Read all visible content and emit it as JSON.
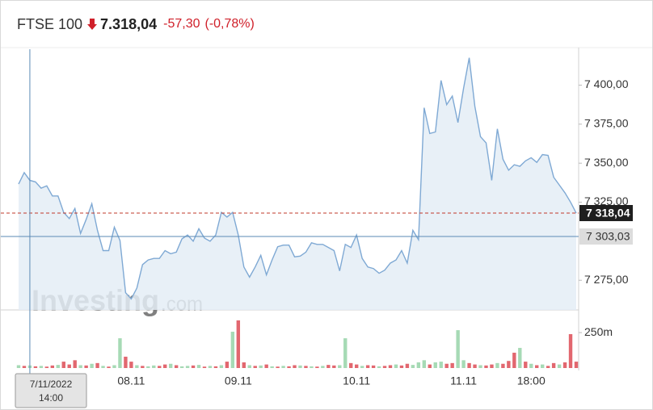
{
  "chart_data": {
    "type": "line",
    "title": "FTSE 100",
    "price_text": "7.318,04",
    "change_text": "-57,30",
    "change_pct_text": "(-0,78%)",
    "categories": [
      null,
      null,
      null,
      null,
      null,
      null,
      null,
      null,
      null,
      null,
      null,
      null,
      null,
      null,
      null,
      null,
      null,
      null,
      null,
      null,
      "08.11",
      null,
      null,
      null,
      null,
      null,
      null,
      null,
      null,
      null,
      null,
      null,
      null,
      null,
      null,
      null,
      null,
      null,
      null,
      "09.11",
      null,
      null,
      null,
      null,
      null,
      null,
      null,
      null,
      null,
      null,
      null,
      null,
      null,
      null,
      null,
      null,
      null,
      null,
      null,
      null,
      "10.11",
      null,
      null,
      null,
      null,
      null,
      null,
      null,
      null,
      null,
      null,
      null,
      null,
      null,
      null,
      null,
      null,
      null,
      null,
      "11.11",
      null,
      null,
      null,
      null,
      null,
      null,
      null,
      null,
      null,
      null,
      null,
      "18:00",
      null,
      null,
      null,
      null,
      null,
      null,
      null,
      null
    ],
    "values": [
      7336.6,
      7344,
      7339,
      7338,
      7334,
      7335.5,
      7329,
      7329,
      7318.5,
      7314.5,
      7321,
      7305,
      7314,
      7324,
      7307,
      7294,
      7294,
      7309,
      7300.5,
      7267,
      7263,
      7270,
      7285,
      7288,
      7289,
      7289,
      7294,
      7292,
      7293,
      7301.5,
      7304,
      7300,
      7308,
      7302,
      7300,
      7304,
      7318.5,
      7315.5,
      7318.5,
      7304,
      7283.5,
      7277,
      7283.5,
      7291,
      7278.5,
      7288,
      7296.5,
      7297.5,
      7297.5,
      7290,
      7290.5,
      7293,
      7299,
      7298,
      7298,
      7296,
      7294,
      7281,
      7298,
      7296,
      7304,
      7289,
      7283.5,
      7282.5,
      7279.5,
      7281.5,
      7286,
      7288,
      7294,
      7286,
      7307,
      7301,
      7385.5,
      7369,
      7370,
      7403,
      7387.5,
      7393,
      7376,
      7398,
      7417.5,
      7386.5,
      7367,
      7363,
      7339,
      7372,
      7352.5,
      7345.5,
      7349,
      7348,
      7351.5,
      7353.5,
      7350.5,
      7355.5,
      7355,
      7341,
      7336,
      7331,
      7325,
      7318.04
    ],
    "color": "#7fa9d4",
    "area_color": "#e4edf6",
    "ylim": [
      7256,
      7423
    ],
    "yticks": [
      {
        "value": 7275,
        "label": "7 275,00"
      },
      {
        "value": 7325,
        "label": "7 325,00"
      },
      {
        "value": 7350,
        "label": "7 350,00"
      },
      {
        "value": 7375,
        "label": "7 375,00"
      },
      {
        "value": 7400,
        "label": "7 400,00"
      }
    ],
    "last_price": {
      "value": 7318.04,
      "label": "7 318,04",
      "color": "#c0392b"
    },
    "crosshair": {
      "value": 7303.03,
      "label": "7 303,03",
      "index": 2,
      "date": "7/11/2022",
      "time": "14:00",
      "color": "#5b8ab5"
    },
    "volume": {
      "ylim": [
        0,
        370
      ],
      "yticks": [
        {
          "value": 250,
          "label": "250m"
        }
      ],
      "values": [
        20,
        15,
        18,
        12,
        15,
        10,
        18,
        22,
        45,
        25,
        55,
        20,
        18,
        30,
        35,
        15,
        10,
        20,
        210,
        80,
        45,
        20,
        15,
        12,
        18,
        15,
        25,
        30,
        20,
        12,
        15,
        18,
        22,
        10,
        15,
        12,
        20,
        45,
        256,
        336,
        40,
        20,
        15,
        18,
        25,
        12,
        10,
        15,
        12,
        20,
        18,
        15,
        12,
        10,
        15,
        22,
        18,
        20,
        210,
        35,
        25,
        15,
        20,
        18,
        12,
        15,
        20,
        25,
        18,
        30,
        22,
        40,
        55,
        25,
        40,
        45,
        30,
        35,
        267,
        55,
        35,
        25,
        20,
        18,
        25,
        35,
        30,
        50,
        108,
        142,
        45,
        30,
        20,
        25,
        15,
        35,
        25,
        40,
        239,
        45
      ],
      "colors": [
        "#a6dab5",
        "#e2676f",
        "#a6dab5",
        "#e2676f",
        "#a6dab5",
        "#e2676f",
        "#e2676f",
        "#a6dab5",
        "#e2676f",
        "#e2676f",
        "#e2676f",
        "#a6dab5",
        "#e2676f",
        "#a6dab5",
        "#e2676f",
        "#a6dab5",
        "#e2676f",
        "#a6dab5",
        "#a6dab5",
        "#e2676f",
        "#e2676f",
        "#a6dab5",
        "#e2676f",
        "#a6dab5",
        "#a6dab5",
        "#e2676f",
        "#e2676f",
        "#a6dab5",
        "#e2676f",
        "#a6dab5",
        "#a6dab5",
        "#e2676f",
        "#a6dab5",
        "#e2676f",
        "#a6dab5",
        "#e2676f",
        "#a6dab5",
        "#e2676f",
        "#a6dab5",
        "#e2676f",
        "#e2676f",
        "#a6dab5",
        "#e2676f",
        "#a6dab5",
        "#e2676f",
        "#a6dab5",
        "#e2676f",
        "#a6dab5",
        "#e2676f",
        "#e2676f",
        "#a6dab5",
        "#e2676f",
        "#a6dab5",
        "#e2676f",
        "#a6dab5",
        "#e2676f",
        "#e2676f",
        "#a6dab5",
        "#a6dab5",
        "#e2676f",
        "#e2676f",
        "#a6dab5",
        "#e2676f",
        "#e2676f",
        "#a6dab5",
        "#e2676f",
        "#e2676f",
        "#a6dab5",
        "#e2676f",
        "#e2676f",
        "#a6dab5",
        "#a6dab5",
        "#a6dab5",
        "#e2676f",
        "#a6dab5",
        "#a6dab5",
        "#e2676f",
        "#e2676f",
        "#a6dab5",
        "#a6dab5",
        "#e2676f",
        "#e2676f",
        "#a6dab5",
        "#e2676f",
        "#e2676f",
        "#a6dab5",
        "#e2676f",
        "#e2676f",
        "#e2676f",
        "#a6dab5",
        "#e2676f",
        "#a6dab5",
        "#e2676f",
        "#a6dab5",
        "#e2676f",
        "#e2676f",
        "#a6dab5",
        "#e2676f",
        "#e2676f",
        "#e2676f"
      ]
    },
    "watermark": [
      "Investing",
      ".com"
    ]
  }
}
